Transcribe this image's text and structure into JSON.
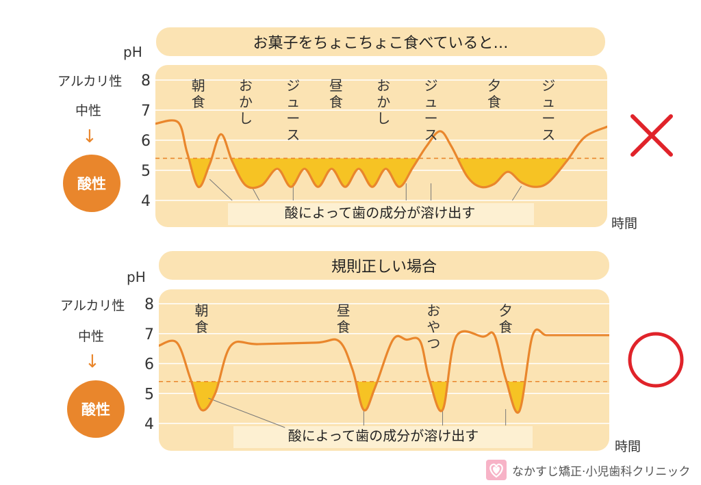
{
  "header1": {
    "title": "お菓子をちょこちょこ食べていると…"
  },
  "header2": {
    "title": "規則正しい場合"
  },
  "chart_data": [
    {
      "type": "line",
      "title": "お菓子をちょこちょこ食べていると…",
      "ylabel": "pH",
      "xlabel": "時間",
      "ylim": [
        4,
        8
      ],
      "y_ticks": [
        "8",
        "7",
        "6",
        "5",
        "4"
      ],
      "critical_ph": 5.4,
      "series": [
        {
          "name": "",
          "x": [
            0.0,
            0.05,
            0.07,
            0.095,
            0.12,
            0.145,
            0.17,
            0.2,
            0.235,
            0.27,
            0.3,
            0.33,
            0.36,
            0.39,
            0.42,
            0.45,
            0.48,
            0.51,
            0.54,
            0.57,
            0.6,
            0.63,
            0.655,
            0.69,
            0.72,
            0.75,
            0.78,
            0.81,
            0.84,
            0.87,
            0.91,
            0.95,
            1.0
          ],
          "y": [
            6.55,
            6.6,
            5.6,
            4.45,
            5.2,
            6.2,
            5.3,
            4.5,
            4.5,
            5.05,
            4.45,
            5.05,
            4.45,
            5.05,
            4.45,
            5.05,
            4.45,
            5.05,
            4.45,
            5.1,
            5.8,
            6.3,
            5.8,
            4.8,
            4.45,
            4.55,
            4.95,
            4.6,
            4.45,
            4.6,
            5.3,
            6.1,
            6.45
          ]
        }
      ],
      "events": [
        "朝食",
        "おかし",
        "ジュース",
        "昼食",
        "おかし",
        "ジュース",
        "夕食",
        "ジュース"
      ],
      "annotation": "酸によって歯の成分が溶け出す",
      "verdict": "×"
    },
    {
      "type": "line",
      "title": "規則正しい場合",
      "ylabel": "pH",
      "xlabel": "時間",
      "ylim": [
        4,
        8
      ],
      "y_ticks": [
        "8",
        "7",
        "6",
        "5",
        "4"
      ],
      "critical_ph": 5.4,
      "series": [
        {
          "name": "",
          "x": [
            0.0,
            0.04,
            0.07,
            0.095,
            0.125,
            0.16,
            0.22,
            0.35,
            0.4,
            0.43,
            0.455,
            0.48,
            0.52,
            0.55,
            0.58,
            0.6,
            0.63,
            0.66,
            0.72,
            0.745,
            0.77,
            0.8,
            0.83,
            0.86,
            0.9,
            1.0
          ],
          "y": [
            6.6,
            6.7,
            5.5,
            4.45,
            5.0,
            6.6,
            6.65,
            6.7,
            6.75,
            5.8,
            4.45,
            5.2,
            6.8,
            6.8,
            6.75,
            5.5,
            4.45,
            6.9,
            6.9,
            6.95,
            5.5,
            4.4,
            6.95,
            6.95,
            6.95,
            6.95
          ]
        }
      ],
      "events": [
        "朝食",
        "昼食",
        "おやつ",
        "夕食"
      ],
      "annotation": "酸によって歯の成分が溶け出す",
      "verdict": "○"
    }
  ],
  "legend": {
    "alkaline": "アルカリ性",
    "neutral": "中性",
    "arrow": "↓",
    "acidic": "酸性"
  },
  "footer": {
    "clinic": "なかすじ矯正·小児歯科クリニック"
  },
  "colors": {
    "panel": "#fbe3b3",
    "curve": "#e9862c",
    "acid_fill": "#f6c324",
    "critical_line": "#e9862c",
    "cross": "#e0232a",
    "circle": "#e0232a"
  }
}
